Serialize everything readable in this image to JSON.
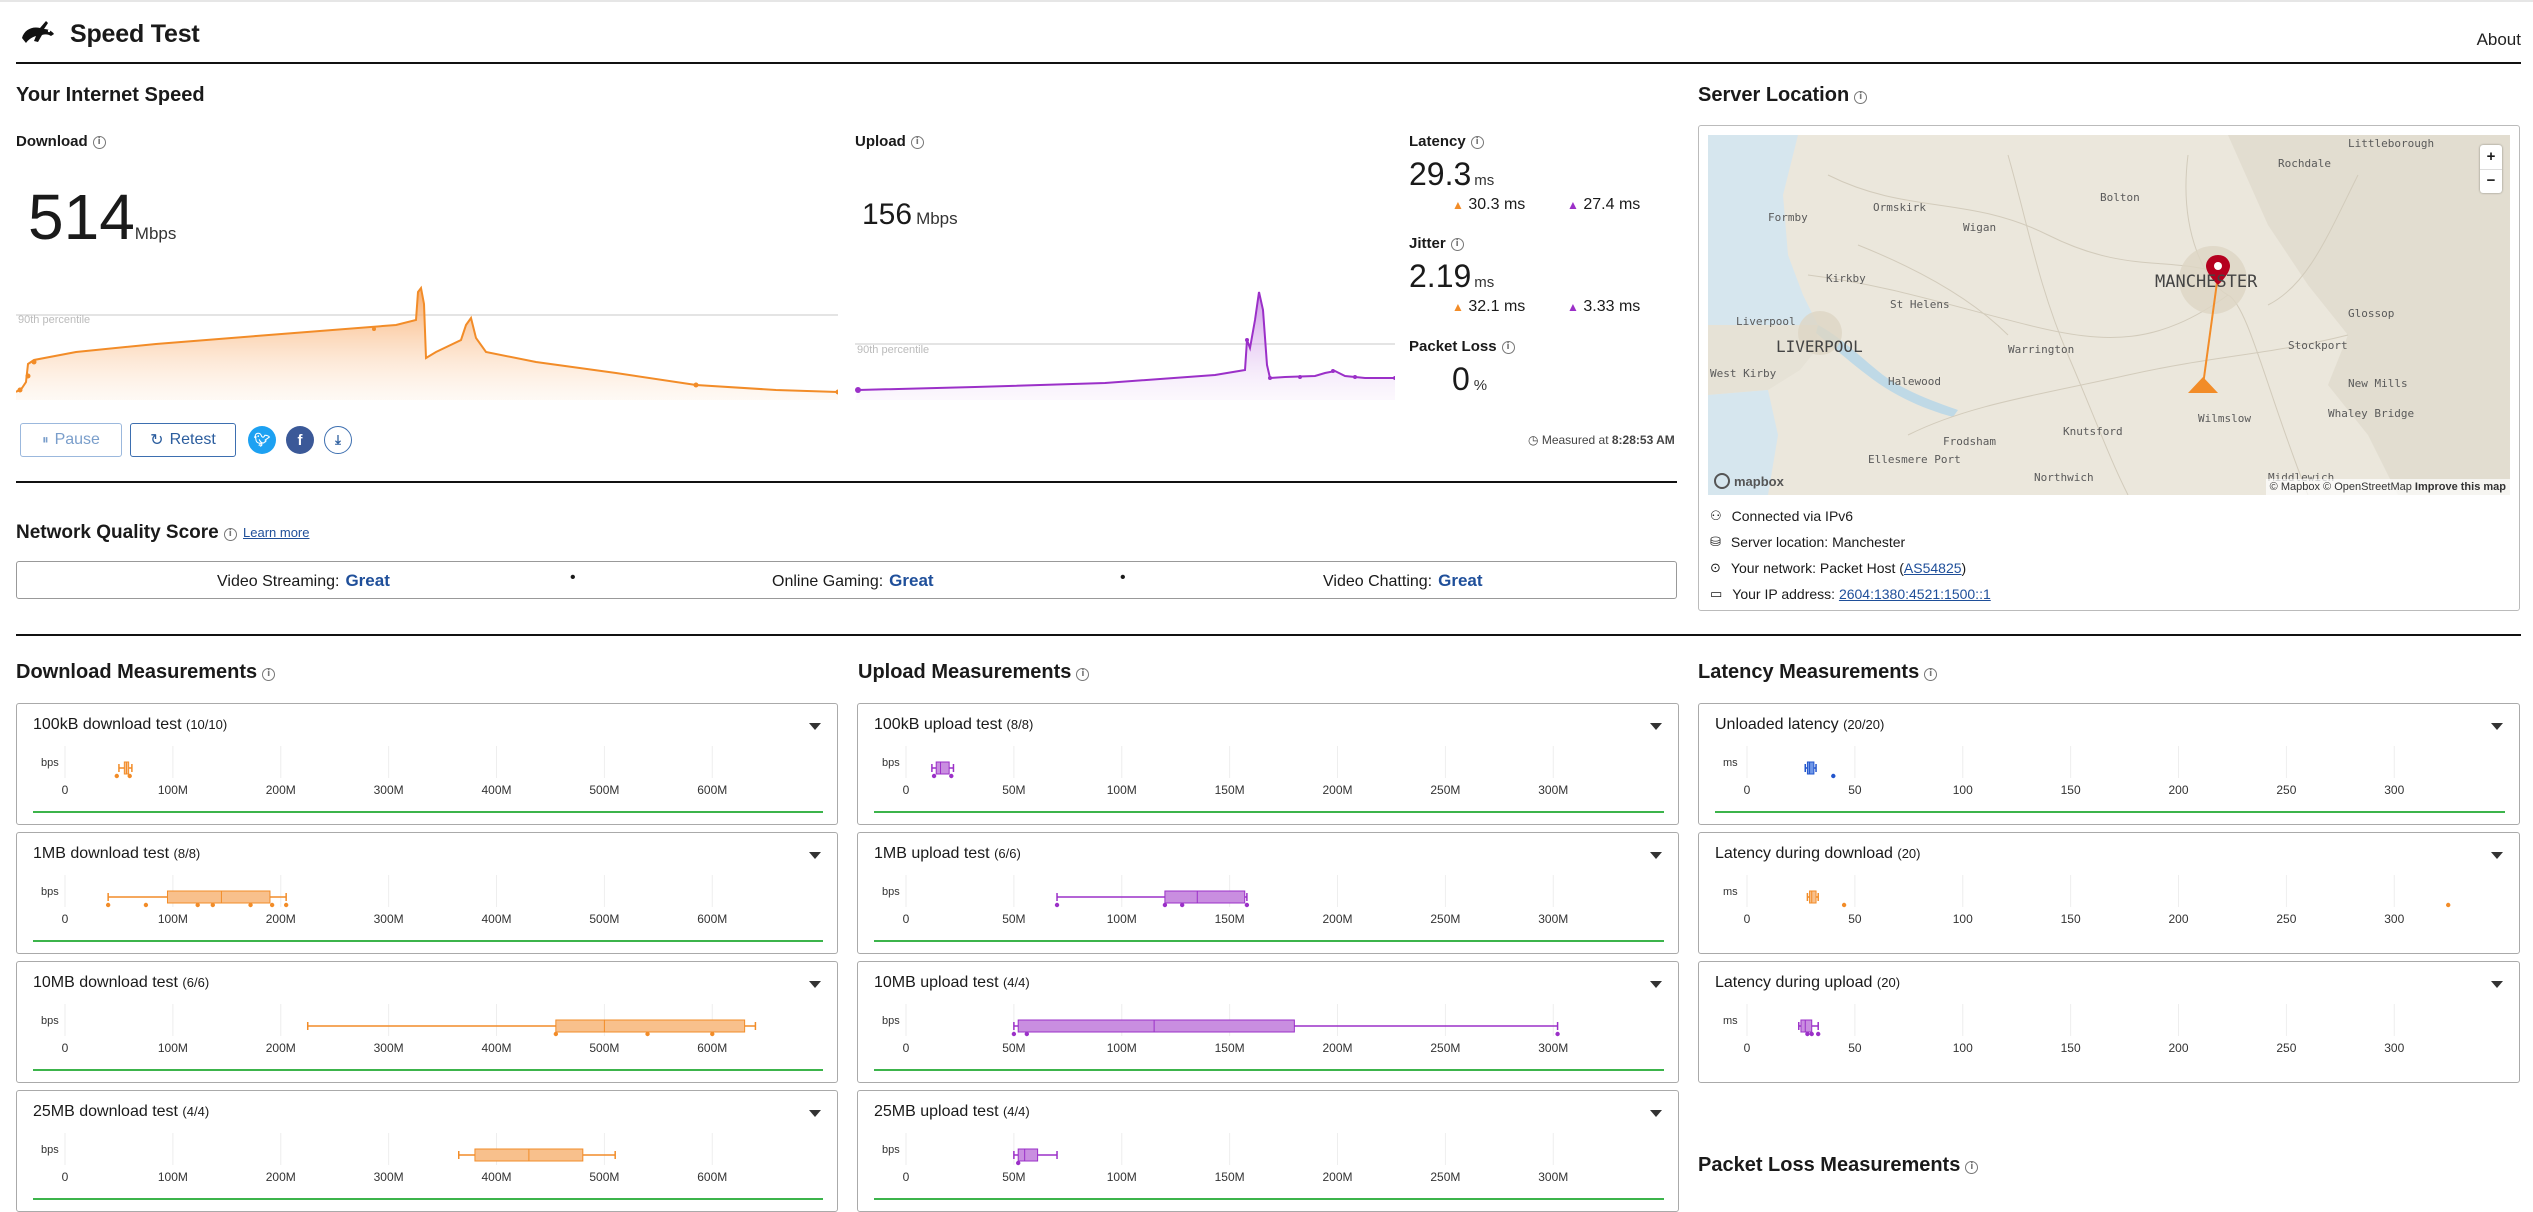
{
  "app": {
    "title": "Speed Test",
    "about": "About"
  },
  "speed": {
    "section_title": "Your Internet Speed",
    "download": {
      "label": "Download",
      "value": "514",
      "unit": "Mbps",
      "percentile": "90th percentile"
    },
    "upload": {
      "label": "Upload",
      "value": "156",
      "unit": "Mbps",
      "percentile": "90th percentile"
    },
    "latency": {
      "label": "Latency",
      "value": "29.3",
      "unit": "ms",
      "down": "30.3",
      "up": "27.4",
      "sub_unit": "ms"
    },
    "jitter": {
      "label": "Jitter",
      "value": "2.19",
      "unit": "ms",
      "down": "32.1",
      "up": "3.33",
      "sub_unit": "ms"
    },
    "packet_loss": {
      "label": "Packet Loss",
      "value": "0",
      "unit": "%"
    },
    "pause": "Pause",
    "retest": "Retest",
    "measured_prefix": "Measured at",
    "measured_time": "8:28:53 AM"
  },
  "network_quality": {
    "title": "Network Quality Score",
    "learn_more": "Learn more",
    "items": [
      {
        "label": "Video Streaming:",
        "value": "Great"
      },
      {
        "label": "Online Gaming:",
        "value": "Great"
      },
      {
        "label": "Video Chatting:",
        "value": "Great"
      }
    ]
  },
  "server": {
    "title": "Server Location",
    "zoom_in": "+",
    "zoom_out": "−",
    "map_labels": {
      "manchester": "MANCHESTER",
      "liverpool": "LIVERPOOL",
      "littleborough": "Littleborough",
      "rochdale": "Rochdale",
      "bolton": "Bolton",
      "wigan": "Wigan",
      "ormskirk": "Ormskirk",
      "formby": "Formby",
      "kirkby": "Kirkby",
      "st_helens": "St Helens",
      "warrington": "Warrington",
      "halewood": "Halewood",
      "stockport": "Stockport",
      "glossop": "Glossop",
      "new_mills": "New Mills",
      "whaley_bridge": "Whaley Bridge",
      "knutsford": "Knutsford",
      "wilmslow": "Wilmslow",
      "frodsham": "Frodsham",
      "northwich": "Northwich",
      "ellesmere_port": "Ellesmere Port",
      "west_kirby": "West Kirby",
      "liverpool_small": "Liverpool",
      "middlewich": "Middlewich"
    },
    "attribution_mapbox": "© Mapbox",
    "attribution_osm": "© OpenStreetMap",
    "improve": "Improve this map",
    "mapbox_logo": "mapbox",
    "connected": "Connected via IPv6",
    "location_prefix": "Server location:",
    "location": "Manchester",
    "network_prefix": "Your network:",
    "network_name": "Packet Host (",
    "network_asn": "AS54825",
    "network_suffix": ")",
    "ip_prefix": "Your IP address:",
    "ip": "2604:1380:4521:1500::1"
  },
  "download_measurements": {
    "title": "Download Measurements",
    "unit": "bps",
    "ticks": [
      "0",
      "100M",
      "200M",
      "300M",
      "400M",
      "500M",
      "600M"
    ],
    "tick_values": [
      0,
      100,
      200,
      300,
      400,
      500,
      600
    ],
    "max": 660,
    "color": "#f28c28",
    "fill": "#f8c08c",
    "tests": [
      {
        "name": "100kB download test",
        "count": "(10/10)",
        "min": 50,
        "q1": 55,
        "median": 57,
        "q3": 59,
        "max": 62,
        "outliers": [
          48,
          60
        ]
      },
      {
        "name": "1MB download test",
        "count": "(8/8)",
        "min": 40,
        "q1": 95,
        "median": 145,
        "q3": 190,
        "max": 205,
        "outliers": [
          40,
          75,
          123,
          137,
          172,
          192,
          205
        ]
      },
      {
        "name": "10MB download test",
        "count": "(6/6)",
        "min": 225,
        "q1": 455,
        "median": 500,
        "q3": 630,
        "max": 640,
        "outliers": [
          455,
          540,
          600
        ]
      },
      {
        "name": "25MB download test",
        "count": "(4/4)",
        "min": 365,
        "q1": 380,
        "median": 430,
        "q3": 480,
        "max": 510,
        "outliers": []
      }
    ]
  },
  "upload_measurements": {
    "title": "Upload Measurements",
    "unit": "bps",
    "ticks": [
      "0",
      "50M",
      "100M",
      "150M",
      "200M",
      "250M",
      "300M"
    ],
    "tick_values": [
      0,
      50,
      100,
      150,
      200,
      250,
      300
    ],
    "max": 330,
    "color": "#9b30c8",
    "fill": "#c98ee0",
    "tests": [
      {
        "name": "100kB upload test",
        "count": "(8/8)",
        "min": 12,
        "q1": 14,
        "median": 16,
        "q3": 20,
        "max": 22,
        "outliers": [
          13,
          21
        ]
      },
      {
        "name": "1MB upload test",
        "count": "(6/6)",
        "min": 70,
        "q1": 120,
        "median": 135,
        "q3": 157,
        "max": 158,
        "outliers": [
          70,
          120,
          128,
          158
        ]
      },
      {
        "name": "10MB upload test",
        "count": "(4/4)",
        "min": 50,
        "q1": 52,
        "median": 115,
        "q3": 180,
        "max": 302,
        "outliers": [
          50,
          56,
          302
        ]
      },
      {
        "name": "25MB upload test",
        "count": "(4/4)",
        "min": 50,
        "q1": 52,
        "median": 55,
        "q3": 61,
        "max": 70,
        "outliers": [
          52
        ]
      }
    ]
  },
  "latency_measurements": {
    "title": "Latency Measurements",
    "unit": "ms",
    "ticks": [
      "0",
      "50",
      "100",
      "150",
      "200",
      "250",
      "300"
    ],
    "tick_values": [
      0,
      50,
      100,
      150,
      200,
      250,
      300
    ],
    "max": 330,
    "tests": [
      {
        "name": "Unloaded latency",
        "count": "(20/20)",
        "color": "#2255cc",
        "fill": "#6f97e8",
        "min": 27,
        "q1": 28,
        "median": 29,
        "q3": 31,
        "max": 32,
        "outliers": [
          40
        ],
        "green": true
      },
      {
        "name": "Latency during download",
        "count": "(20)",
        "color": "#f28c28",
        "fill": "#f8c08c",
        "min": 28,
        "q1": 29,
        "median": 30,
        "q3": 32,
        "max": 33,
        "outliers": [
          45,
          325
        ],
        "green": false
      },
      {
        "name": "Latency during upload",
        "count": "(20)",
        "color": "#9b30c8",
        "fill": "#c98ee0",
        "min": 24,
        "q1": 25,
        "median": 27,
        "q3": 30,
        "max": 33,
        "outliers": [
          28,
          30,
          33
        ],
        "green": false
      }
    ]
  },
  "packet_loss_measurements": {
    "title": "Packet Loss Measurements"
  }
}
